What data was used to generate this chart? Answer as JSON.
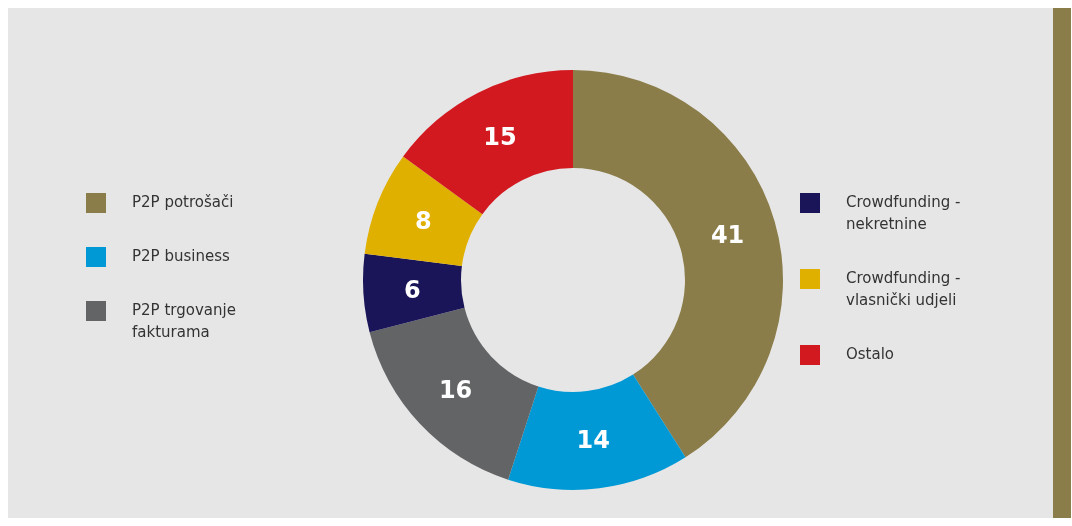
{
  "chart_data": {
    "type": "donut",
    "categories": [
      "P2P potrošači",
      "P2P business",
      "P2P trgovanje fakturama",
      "Crowdfunding - nekretnine",
      "Crowdfunding - vlasnički udjeli",
      "Ostalo"
    ],
    "values": [
      41,
      14,
      16,
      6,
      8,
      15
    ],
    "colors": [
      "#8b7d4a",
      "#0099d6",
      "#636466",
      "#1a1558",
      "#e0b000",
      "#d31920"
    ],
    "data_labels": true,
    "legend": "left"
  }
}
